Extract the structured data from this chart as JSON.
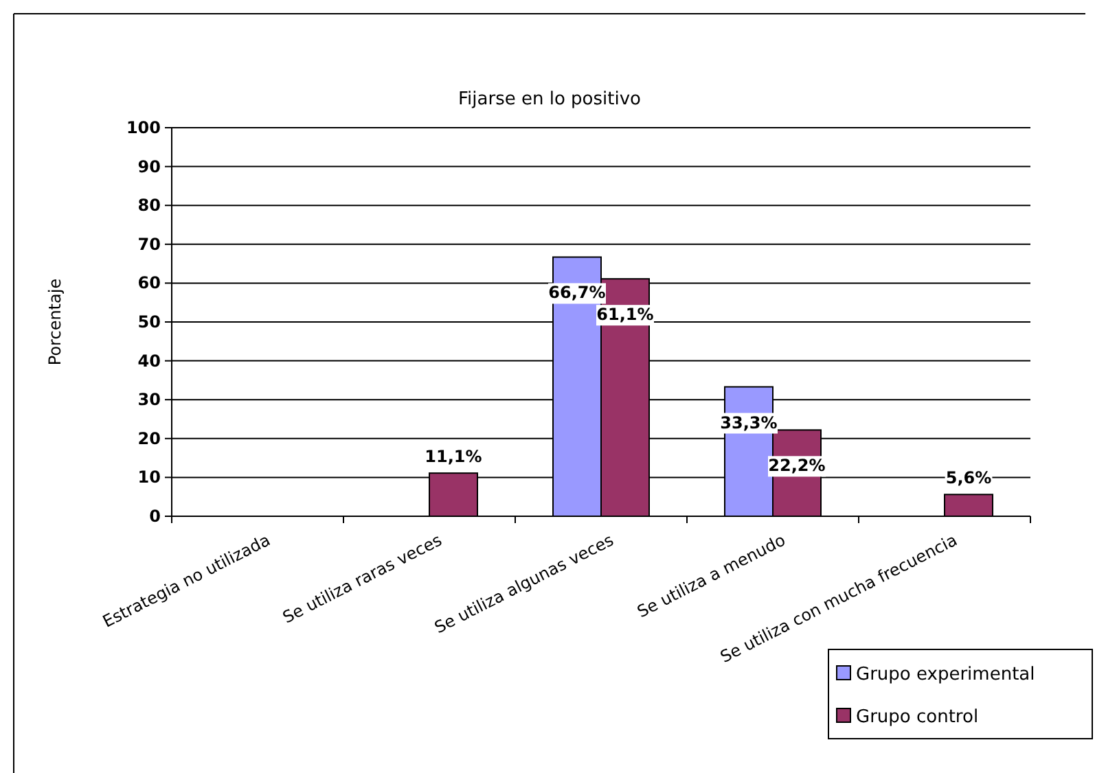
{
  "chart_data": {
    "type": "bar",
    "title": "Fijarse en lo positivo",
    "ylabel": "Porcentaje",
    "categories": [
      "Estrategia no utilizada",
      "Se utiliza raras veces",
      "Se utiliza algunas veces",
      "Se utiliza a menudo",
      "Se utiliza con mucha frecuencia"
    ],
    "series": [
      {
        "name": "Grupo experimental",
        "color": "#9999ff",
        "values": [
          0,
          0,
          66.7,
          33.3,
          0
        ],
        "value_labels": [
          null,
          null,
          "66,7%",
          "33,3%",
          null
        ]
      },
      {
        "name": "Grupo control",
        "color": "#993366",
        "values": [
          0,
          11.1,
          61.1,
          22.2,
          5.6
        ],
        "value_labels": [
          null,
          "11,1%",
          "61,1%",
          "22,2%",
          "5,6%"
        ]
      }
    ],
    "ylim": [
      0,
      100
    ],
    "yticks": [
      0,
      10,
      20,
      30,
      40,
      50,
      60,
      70,
      80,
      90,
      100
    ],
    "grid": "y",
    "legend": "bottom right"
  }
}
